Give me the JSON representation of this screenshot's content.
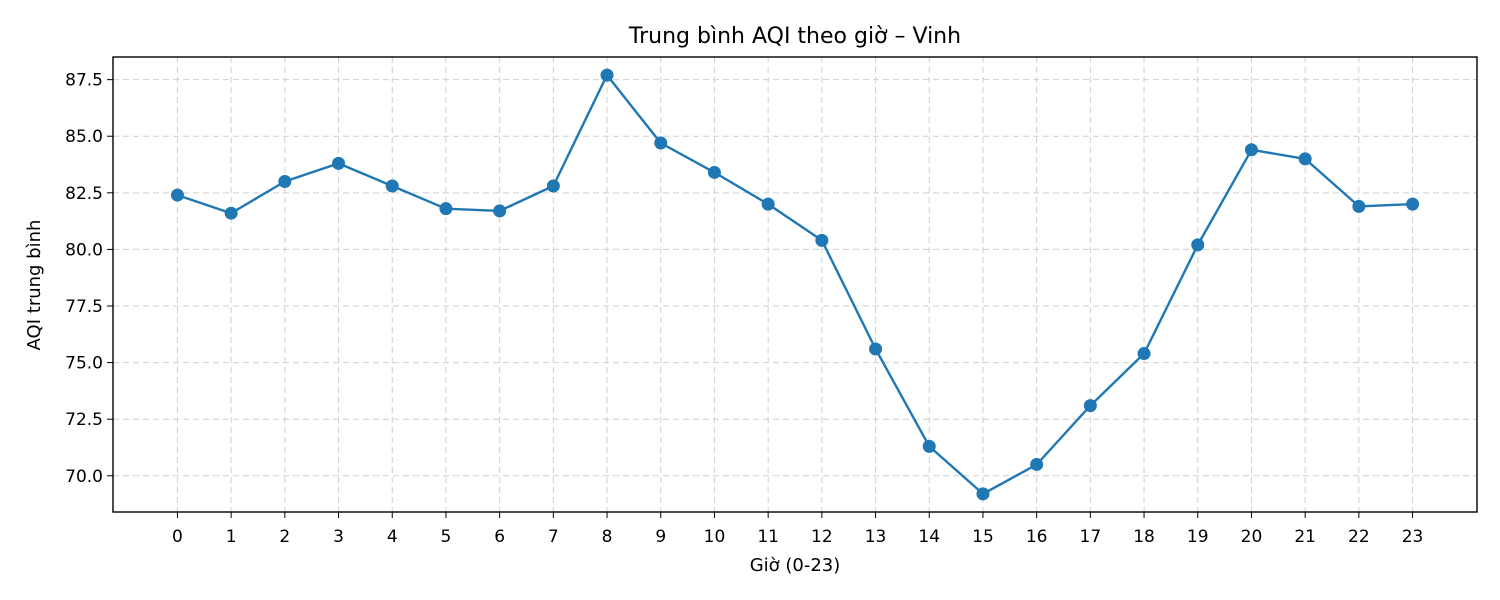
{
  "chart_data": {
    "type": "line",
    "title": "Trung bình AQI theo giờ – Vinh",
    "xlabel": "Giờ (0-23)",
    "ylabel": "AQI trung bình",
    "x": [
      0,
      1,
      2,
      3,
      4,
      5,
      6,
      7,
      8,
      9,
      10,
      11,
      12,
      13,
      14,
      15,
      16,
      17,
      18,
      19,
      20,
      21,
      22,
      23
    ],
    "x_tick_labels": [
      "0",
      "1",
      "2",
      "3",
      "4",
      "5",
      "6",
      "7",
      "8",
      "9",
      "10",
      "11",
      "12",
      "13",
      "14",
      "15",
      "16",
      "17",
      "18",
      "19",
      "20",
      "21",
      "22",
      "23"
    ],
    "series": [
      {
        "values": [
          82.4,
          81.6,
          83.0,
          83.8,
          82.8,
          81.8,
          81.7,
          82.8,
          87.7,
          84.7,
          83.4,
          82.0,
          80.4,
          75.6,
          71.3,
          69.2,
          70.5,
          73.1,
          75.4,
          80.2,
          84.4,
          84.0,
          81.9,
          82.0
        ],
        "color": "#1f77b4",
        "marker": "circle"
      }
    ],
    "xlim": [
      -1.2,
      24.2
    ],
    "ylim": [
      68.4,
      88.5
    ],
    "y_ticks": [
      70.0,
      72.5,
      75.0,
      77.5,
      80.0,
      82.5,
      85.0,
      87.5
    ],
    "y_tick_labels": [
      "70.0",
      "72.5",
      "75.0",
      "77.5",
      "80.0",
      "82.5",
      "85.0",
      "87.5"
    ],
    "grid": true,
    "legend": "none"
  }
}
